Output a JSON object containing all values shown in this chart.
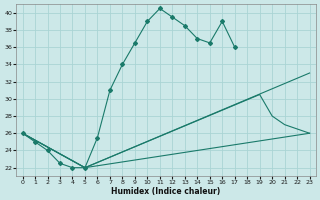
{
  "xlabel": "Humidex (Indice chaleur)",
  "bg_color": "#cce8e8",
  "grid_color": "#aad4d4",
  "line_color": "#1a7a6a",
  "xlim": [
    -0.5,
    23.5
  ],
  "ylim": [
    21.0,
    41.0
  ],
  "yticks": [
    22,
    24,
    26,
    28,
    30,
    32,
    34,
    36,
    38,
    40
  ],
  "xticks": [
    0,
    1,
    2,
    3,
    4,
    5,
    6,
    7,
    8,
    9,
    10,
    11,
    12,
    13,
    14,
    15,
    16,
    17,
    18,
    19,
    20,
    21,
    22,
    23
  ],
  "curve1_x": [
    0,
    1,
    2,
    3,
    4,
    5,
    6,
    7,
    8,
    9,
    10,
    11,
    12,
    13,
    14,
    15,
    16,
    17
  ],
  "curve1_y": [
    26.0,
    25.0,
    24.0,
    22.5,
    22.0,
    22.0,
    25.5,
    31.0,
    34.0,
    36.5,
    39.0,
    40.5,
    39.5,
    38.5,
    37.0,
    36.5,
    39.0,
    36.0
  ],
  "curve2_x": [
    0,
    5,
    23
  ],
  "curve2_y": [
    26.0,
    22.0,
    33.0
  ],
  "curve3_x": [
    0,
    5,
    19,
    20,
    21,
    22,
    23
  ],
  "curve3_y": [
    26.0,
    22.0,
    30.5,
    28.0,
    27.0,
    26.5,
    26.0
  ],
  "curve4_x": [
    0,
    5,
    23
  ],
  "curve4_y": [
    26.0,
    22.0,
    26.0
  ]
}
